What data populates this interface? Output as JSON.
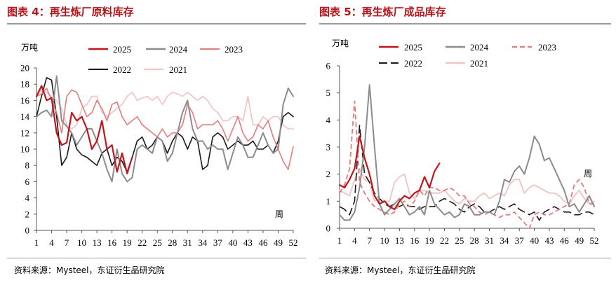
{
  "left": {
    "title": "图表 4：再生炼厂原料库存",
    "source": "资料来源：Mysteel，东证衍生品研究院"
  },
  "right": {
    "title": "图表 5：再生炼厂成品库存",
    "source": "资料来源：Mysteel，东证衍生品研究院"
  },
  "colors": {
    "title": "#b4151b",
    "rule": "#9a9a9a",
    "axis": "#555555"
  },
  "chart_data": [
    {
      "type": "line",
      "ylabel": "万吨",
      "xlabel": "周",
      "ylim": [
        0,
        20
      ],
      "yticks": [
        0,
        2,
        4,
        6,
        8,
        10,
        12,
        14,
        16,
        18,
        20
      ],
      "xlim": [
        1,
        52
      ],
      "xticks": [
        1,
        4,
        7,
        10,
        13,
        16,
        19,
        22,
        25,
        28,
        31,
        34,
        37,
        40,
        43,
        46,
        49,
        52
      ],
      "legend": "top",
      "series": [
        {
          "name": "2025",
          "color": "#c0171d",
          "dash": "solid",
          "width": 2.2,
          "x": [
            1,
            2,
            3,
            4,
            5,
            6,
            7,
            8,
            9,
            10,
            11,
            12,
            13,
            14,
            15,
            16,
            17,
            18,
            19,
            20
          ],
          "y": [
            16.5,
            17.8,
            16.0,
            16.3,
            12.0,
            10.5,
            10.8,
            14.5,
            13.5,
            14.0,
            12.5,
            10.0,
            11.0,
            13.5,
            10.0,
            10.5,
            7.2,
            9.5,
            7.0,
            9.0
          ]
        },
        {
          "name": "2024",
          "color": "#8c8c8c",
          "dash": "solid",
          "width": 2.0,
          "x": [
            1,
            2,
            3,
            4,
            5,
            6,
            7,
            8,
            9,
            10,
            11,
            12,
            13,
            14,
            15,
            16,
            17,
            18,
            19,
            20,
            21,
            22,
            23,
            24,
            25,
            26,
            27,
            28,
            29,
            30,
            31,
            32,
            33,
            34,
            35,
            36,
            37,
            38,
            39,
            40,
            41,
            42,
            43,
            44,
            45,
            46,
            47,
            48,
            49,
            50,
            51,
            52
          ],
          "y": [
            14.0,
            14.5,
            14.8,
            14.0,
            19.0,
            13.5,
            12.8,
            12.0,
            10.5,
            11.5,
            12.5,
            12.5,
            11.0,
            9.5,
            7.5,
            6.0,
            10.0,
            7.0,
            6.0,
            6.5,
            10.0,
            10.5,
            10.0,
            9.5,
            11.5,
            11.0,
            8.5,
            9.5,
            12.0,
            14.5,
            16.0,
            12.5,
            11.0,
            11.0,
            10.0,
            10.5,
            10.0,
            10.0,
            7.5,
            9.5,
            11.5,
            10.5,
            9.0,
            9.0,
            10.5,
            12.0,
            10.5,
            9.5,
            10.0,
            15.5,
            17.5,
            16.5
          ]
        },
        {
          "name": "2023",
          "color": "#e27d7d",
          "dash": "solid",
          "width": 1.6,
          "x": [
            1,
            2,
            3,
            4,
            5,
            6,
            7,
            8,
            9,
            10,
            11,
            12,
            13,
            14,
            15,
            16,
            17,
            18,
            19,
            20,
            21,
            22,
            23,
            24,
            25,
            26,
            27,
            28,
            29,
            30,
            31,
            32,
            33,
            34,
            35,
            36,
            37,
            38,
            39,
            40,
            41,
            42,
            43,
            44,
            45,
            46,
            47,
            48,
            49,
            50,
            51,
            52
          ],
          "y": [
            16.5,
            16.8,
            17.5,
            16.0,
            14.5,
            12.0,
            16.5,
            17.3,
            17.0,
            15.5,
            14.0,
            14.5,
            16.0,
            15.0,
            13.5,
            15.5,
            15.8,
            14.0,
            13.0,
            13.5,
            14.0,
            13.0,
            12.5,
            12.0,
            11.5,
            12.5,
            11.5,
            12.0,
            12.0,
            13.0,
            15.5,
            14.5,
            12.5,
            13.0,
            13.0,
            13.0,
            13.5,
            12.5,
            11.0,
            12.5,
            14.0,
            12.0,
            11.0,
            11.5,
            13.0,
            12.5,
            13.5,
            11.5,
            10.0,
            8.5,
            7.5,
            10.3
          ]
        },
        {
          "name": "2022",
          "color": "#1a1a1a",
          "dash": "solid",
          "width": 1.6,
          "x": [
            1,
            2,
            3,
            4,
            5,
            6,
            7,
            8,
            9,
            10,
            11,
            12,
            13,
            14,
            15,
            16,
            17,
            18,
            19,
            20,
            21,
            22,
            23,
            24,
            25,
            26,
            27,
            28,
            29,
            30,
            31,
            32,
            33,
            34,
            35,
            36,
            37,
            38,
            39,
            40,
            41,
            42,
            43,
            44,
            45,
            46,
            47,
            48,
            49,
            50,
            51,
            52
          ],
          "y": [
            14.0,
            16.5,
            18.8,
            18.5,
            14.0,
            8.0,
            9.0,
            12.0,
            10.0,
            9.3,
            9.0,
            8.5,
            8.0,
            9.5,
            10.0,
            8.0,
            9.0,
            8.5,
            7.2,
            9.0,
            11.0,
            11.5,
            10.0,
            10.5,
            11.5,
            11.0,
            9.5,
            11.0,
            12.0,
            11.5,
            10.0,
            11.5,
            11.0,
            7.5,
            8.0,
            11.5,
            12.0,
            11.5,
            10.0,
            10.5,
            11.0,
            10.5,
            10.5,
            11.0,
            10.0,
            10.0,
            10.5,
            9.5,
            11.0,
            14.0,
            14.5,
            14.0
          ]
        },
        {
          "name": "2021",
          "color": "#f0c2c2",
          "dash": "solid",
          "width": 1.6,
          "x": [
            1,
            2,
            3,
            4,
            5,
            6,
            7,
            8,
            9,
            10,
            11,
            12,
            13,
            14,
            15,
            16,
            17,
            18,
            19,
            20,
            21,
            22,
            23,
            24,
            25,
            26,
            27,
            28,
            29,
            30,
            31,
            32,
            33,
            34,
            35,
            36,
            37,
            38,
            39,
            40,
            41,
            42,
            43,
            44,
            45,
            46,
            47,
            48,
            49,
            50,
            51,
            52
          ],
          "y": [
            16.5,
            17.3,
            17.0,
            16.5,
            16.0,
            15.0,
            13.0,
            12.5,
            13.0,
            15.0,
            15.5,
            16.5,
            16.5,
            14.5,
            14.0,
            14.5,
            15.0,
            15.5,
            16.5,
            17.0,
            16.0,
            16.3,
            16.5,
            16.0,
            16.5,
            15.5,
            16.5,
            17.0,
            16.8,
            16.5,
            17.0,
            16.5,
            16.0,
            16.5,
            16.0,
            15.0,
            14.5,
            13.5,
            13.5,
            14.0,
            14.0,
            13.5,
            16.5,
            13.0,
            13.0,
            14.0,
            13.5,
            14.0,
            14.0,
            13.0,
            12.5,
            12.5
          ]
        }
      ]
    },
    {
      "type": "line",
      "ylabel": "万吨",
      "xlabel": "周",
      "ylim": [
        0,
        6
      ],
      "yticks": [
        0,
        1,
        2,
        3,
        4,
        5,
        6
      ],
      "xlim": [
        1,
        52
      ],
      "xticks": [
        1,
        4,
        7,
        10,
        13,
        16,
        19,
        22,
        25,
        28,
        31,
        34,
        37,
        40,
        43,
        46,
        49,
        52
      ],
      "legend": "top",
      "series": [
        {
          "name": "2025",
          "color": "#c0171d",
          "dash": "solid",
          "width": 2.2,
          "x": [
            1,
            2,
            3,
            4,
            5,
            6,
            7,
            8,
            9,
            10,
            11,
            12,
            13,
            14,
            15,
            16,
            17,
            18,
            19,
            20,
            21
          ],
          "y": [
            1.6,
            1.5,
            1.8,
            2.2,
            3.4,
            2.6,
            2.0,
            1.2,
            0.9,
            1.0,
            0.8,
            0.7,
            1.0,
            1.2,
            1.1,
            1.3,
            1.4,
            1.9,
            1.5,
            2.1,
            2.4
          ]
        },
        {
          "name": "2024",
          "color": "#8c8c8c",
          "dash": "solid",
          "width": 2.0,
          "x": [
            1,
            2,
            3,
            4,
            5,
            6,
            7,
            8,
            9,
            10,
            11,
            12,
            13,
            14,
            15,
            16,
            17,
            18,
            19,
            20,
            21,
            22,
            23,
            24,
            25,
            26,
            27,
            28,
            29,
            30,
            31,
            32,
            33,
            34,
            35,
            36,
            37,
            38,
            39,
            40,
            41,
            42,
            43,
            44,
            45,
            46,
            47,
            48,
            49,
            50,
            51,
            52
          ],
          "y": [
            0.5,
            0.3,
            0.3,
            0.6,
            1.5,
            3.0,
            5.3,
            3.0,
            0.9,
            0.5,
            0.7,
            0.9,
            1.1,
            0.8,
            0.5,
            0.6,
            0.8,
            0.5,
            1.4,
            0.9,
            0.7,
            0.5,
            0.6,
            0.4,
            0.5,
            0.9,
            0.8,
            0.5,
            0.5,
            0.6,
            0.6,
            0.5,
            1.0,
            1.8,
            1.7,
            2.1,
            2.3,
            2.0,
            2.6,
            3.4,
            3.1,
            2.5,
            2.6,
            2.2,
            1.8,
            1.4,
            0.8,
            0.9,
            0.6,
            0.9,
            1.2,
            0.8
          ]
        },
        {
          "name": "2023",
          "color": "#e27d7d",
          "dash": "dashed",
          "width": 1.8,
          "x": [
            1,
            2,
            3,
            4,
            5,
            6,
            7,
            8,
            9,
            10,
            11,
            12,
            13,
            14,
            15,
            16,
            17,
            18,
            19,
            20,
            21,
            22,
            23,
            24,
            25,
            26,
            27,
            28,
            29,
            30,
            31,
            32,
            33,
            34,
            35,
            36,
            37,
            38,
            39,
            40,
            41,
            42,
            43,
            44,
            45,
            46,
            47,
            48,
            49,
            50,
            51,
            52
          ],
          "y": [
            1.3,
            1.6,
            2.2,
            4.7,
            1.7,
            1.3,
            1.0,
            0.8,
            0.7,
            0.6,
            0.5,
            0.6,
            0.9,
            1.0,
            0.8,
            1.0,
            1.4,
            1.2,
            1.5,
            1.5,
            1.4,
            1.4,
            1.5,
            1.4,
            1.2,
            1.2,
            0.9,
            0.8,
            0.6,
            0.5,
            0.6,
            0.5,
            0.4,
            0.5,
            0.5,
            0.6,
            0.4,
            0.2,
            0.0,
            0.5,
            0.6,
            0.5,
            0.5,
            0.6,
            0.7,
            0.8,
            0.9,
            1.6,
            1.8,
            1.5,
            0.9,
            0.9
          ]
        },
        {
          "name": "2022",
          "color": "#1a1a1a",
          "dash": "long-dash",
          "width": 1.6,
          "x": [
            1,
            2,
            3,
            4,
            5,
            6,
            7,
            8,
            9,
            10,
            11,
            12,
            13,
            14,
            15,
            16,
            17,
            18,
            19,
            20,
            21,
            22,
            23,
            24,
            25,
            26,
            27,
            28,
            29,
            30,
            31,
            32,
            33,
            34,
            35,
            36,
            37,
            38,
            39,
            40,
            41,
            42,
            43,
            44,
            45,
            46,
            47,
            48,
            49,
            50,
            51,
            52
          ],
          "y": [
            0.8,
            0.7,
            0.5,
            1.0,
            3.8,
            2.0,
            1.7,
            1.3,
            1.1,
            0.9,
            0.8,
            0.9,
            0.8,
            0.9,
            0.8,
            0.8,
            0.7,
            0.8,
            0.8,
            0.8,
            1.0,
            1.1,
            1.0,
            0.9,
            0.7,
            0.6,
            0.8,
            0.9,
            0.8,
            0.6,
            0.6,
            0.7,
            0.8,
            0.7,
            0.8,
            0.9,
            0.7,
            0.6,
            0.5,
            0.6,
            0.3,
            0.6,
            0.7,
            0.8,
            0.7,
            0.6,
            0.6,
            0.5,
            0.5,
            0.6,
            0.6,
            0.5
          ]
        },
        {
          "name": "2021",
          "color": "#f0c2c2",
          "dash": "solid",
          "width": 1.8,
          "x": [
            1,
            2,
            3,
            4,
            5,
            6,
            7,
            8,
            9,
            10,
            11,
            12,
            13,
            14,
            15,
            16,
            17,
            18,
            19,
            20,
            21,
            22,
            23,
            24,
            25,
            26,
            27,
            28,
            29,
            30,
            31,
            32,
            33,
            34,
            35,
            36,
            37,
            38,
            39,
            40,
            41,
            42,
            43,
            44,
            45,
            46,
            47,
            48,
            49,
            50,
            51,
            52
          ],
          "y": [
            1.4,
            1.3,
            1.2,
            1.8,
            2.2,
            1.8,
            1.7,
            1.0,
            1.1,
            1.0,
            1.0,
            1.7,
            1.9,
            2.0,
            1.3,
            1.1,
            1.4,
            1.4,
            1.3,
            1.3,
            1.3,
            1.4,
            1.2,
            1.0,
            0.9,
            1.1,
            1.0,
            1.0,
            1.2,
            1.3,
            1.1,
            1.2,
            1.3,
            1.2,
            1.6,
            1.8,
            1.8,
            1.3,
            1.5,
            1.6,
            1.5,
            1.4,
            1.3,
            1.3,
            1.2,
            1.0,
            0.9,
            1.2,
            1.4,
            1.1,
            0.9,
            1.0
          ]
        }
      ]
    }
  ]
}
